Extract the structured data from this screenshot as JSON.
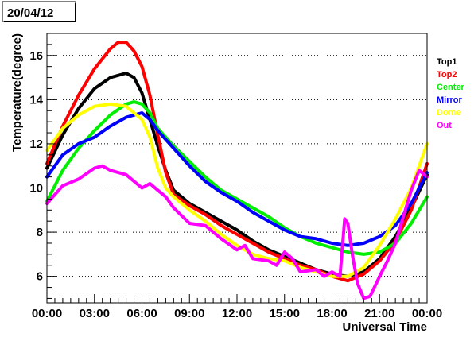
{
  "date_label": "20/04/12",
  "chart_data": {
    "type": "line",
    "title": "20/04/12",
    "xlabel": "Universal Time",
    "ylabel": "Temperature(degree)",
    "xlim": [
      0,
      24
    ],
    "ylim": [
      4.8,
      17.0
    ],
    "x_ticks": [
      {
        "value": 0,
        "label": "00:00"
      },
      {
        "value": 3,
        "label": "03:00"
      },
      {
        "value": 6,
        "label": "06:00"
      },
      {
        "value": 9,
        "label": "09:00"
      },
      {
        "value": 12,
        "label": "12:00"
      },
      {
        "value": 15,
        "label": "15:00"
      },
      {
        "value": 18,
        "label": "18:00"
      },
      {
        "value": 21,
        "label": "21:00"
      },
      {
        "value": 24,
        "label": "00:00"
      }
    ],
    "y_ticks": [
      {
        "value": 6,
        "label": "6"
      },
      {
        "value": 8,
        "label": "8"
      },
      {
        "value": 10,
        "label": "10"
      },
      {
        "value": 12,
        "label": "12"
      },
      {
        "value": 14,
        "label": "14"
      },
      {
        "value": 16,
        "label": "16"
      }
    ],
    "grid": "horizontal dotted",
    "legend_position": "right",
    "series": [
      {
        "name": "Top1",
        "color": "#000000",
        "points": [
          [
            0,
            10.9
          ],
          [
            1,
            12.4
          ],
          [
            2,
            13.6
          ],
          [
            3,
            14.5
          ],
          [
            4,
            15.0
          ],
          [
            5,
            15.2
          ],
          [
            5.5,
            15.0
          ],
          [
            6,
            14.3
          ],
          [
            6.5,
            13.1
          ],
          [
            7,
            11.9
          ],
          [
            7.5,
            10.8
          ],
          [
            8,
            9.9
          ],
          [
            9,
            9.3
          ],
          [
            10,
            8.9
          ],
          [
            11,
            8.5
          ],
          [
            12,
            8.1
          ],
          [
            13,
            7.6
          ],
          [
            14,
            7.2
          ],
          [
            15,
            6.9
          ],
          [
            16,
            6.6
          ],
          [
            17,
            6.3
          ],
          [
            18,
            6.1
          ],
          [
            19,
            6.0
          ],
          [
            20,
            6.2
          ],
          [
            21,
            6.8
          ],
          [
            22,
            7.8
          ],
          [
            23,
            9.1
          ],
          [
            24,
            10.6
          ]
        ]
      },
      {
        "name": "Top2",
        "color": "#ff0000",
        "points": [
          [
            0,
            11.1
          ],
          [
            1,
            12.8
          ],
          [
            2,
            14.2
          ],
          [
            3,
            15.4
          ],
          [
            4,
            16.3
          ],
          [
            4.5,
            16.6
          ],
          [
            5,
            16.6
          ],
          [
            5.5,
            16.2
          ],
          [
            6,
            15.5
          ],
          [
            6.5,
            14.2
          ],
          [
            7,
            12.4
          ],
          [
            7.5,
            10.7
          ],
          [
            8,
            9.7
          ],
          [
            9,
            9.2
          ],
          [
            10,
            8.8
          ],
          [
            11,
            8.3
          ],
          [
            12,
            7.9
          ],
          [
            13,
            7.5
          ],
          [
            14,
            7.1
          ],
          [
            15,
            6.8
          ],
          [
            16,
            6.5
          ],
          [
            17,
            6.3
          ],
          [
            18,
            6.0
          ],
          [
            19,
            5.8
          ],
          [
            20,
            6.1
          ],
          [
            21,
            6.7
          ],
          [
            22,
            7.6
          ],
          [
            23,
            9.0
          ],
          [
            24,
            11.1
          ]
        ]
      },
      {
        "name": "Center",
        "color": "#00ee00",
        "points": [
          [
            0,
            9.4
          ],
          [
            1,
            10.8
          ],
          [
            2,
            11.8
          ],
          [
            3,
            12.6
          ],
          [
            4,
            13.3
          ],
          [
            5,
            13.8
          ],
          [
            5.5,
            13.9
          ],
          [
            6,
            13.8
          ],
          [
            6.5,
            13.4
          ],
          [
            7,
            12.7
          ],
          [
            8,
            11.9
          ],
          [
            9,
            11.2
          ],
          [
            10,
            10.5
          ],
          [
            11,
            9.9
          ],
          [
            12,
            9.5
          ],
          [
            13,
            9.1
          ],
          [
            14,
            8.7
          ],
          [
            15,
            8.2
          ],
          [
            16,
            7.8
          ],
          [
            17,
            7.5
          ],
          [
            18,
            7.3
          ],
          [
            19,
            7.1
          ],
          [
            20,
            7.0
          ],
          [
            21,
            7.1
          ],
          [
            22,
            7.5
          ],
          [
            23,
            8.4
          ],
          [
            24,
            9.6
          ]
        ]
      },
      {
        "name": "Mirror",
        "color": "#0000ff",
        "points": [
          [
            0,
            10.5
          ],
          [
            1,
            11.5
          ],
          [
            2,
            12.0
          ],
          [
            3,
            12.3
          ],
          [
            4,
            12.8
          ],
          [
            5,
            13.2
          ],
          [
            6,
            13.4
          ],
          [
            6.5,
            13.1
          ],
          [
            7,
            12.6
          ],
          [
            8,
            11.8
          ],
          [
            9,
            11.0
          ],
          [
            10,
            10.3
          ],
          [
            11,
            9.8
          ],
          [
            12,
            9.4
          ],
          [
            13,
            8.9
          ],
          [
            14,
            8.5
          ],
          [
            15,
            8.1
          ],
          [
            16,
            7.8
          ],
          [
            17,
            7.7
          ],
          [
            18,
            7.5
          ],
          [
            19,
            7.4
          ],
          [
            20,
            7.5
          ],
          [
            21,
            7.8
          ],
          [
            22,
            8.3
          ],
          [
            23,
            9.3
          ],
          [
            24,
            10.7
          ]
        ]
      },
      {
        "name": "Dome",
        "color": "#ffff00",
        "points": [
          [
            0,
            11.7
          ],
          [
            1,
            12.7
          ],
          [
            2,
            13.3
          ],
          [
            3,
            13.7
          ],
          [
            4,
            13.8
          ],
          [
            5,
            13.7
          ],
          [
            6,
            13.1
          ],
          [
            6.5,
            12.3
          ],
          [
            7,
            10.9
          ],
          [
            7.5,
            10.0
          ],
          [
            8,
            9.6
          ],
          [
            9,
            9.0
          ],
          [
            10,
            8.5
          ],
          [
            11,
            7.9
          ],
          [
            12,
            7.4
          ],
          [
            13,
            7.0
          ],
          [
            14,
            6.8
          ],
          [
            15,
            6.7
          ],
          [
            16,
            6.4
          ],
          [
            17,
            6.2
          ],
          [
            18,
            6.0
          ],
          [
            19,
            6.0
          ],
          [
            20,
            6.4
          ],
          [
            21,
            7.4
          ],
          [
            22,
            8.6
          ],
          [
            23,
            10.0
          ],
          [
            24,
            12.0
          ]
        ]
      },
      {
        "name": "Out",
        "color": "#ff00ff",
        "points": [
          [
            0,
            9.3
          ],
          [
            1,
            10.1
          ],
          [
            2,
            10.4
          ],
          [
            3,
            10.9
          ],
          [
            3.5,
            11.0
          ],
          [
            4,
            10.8
          ],
          [
            5,
            10.6
          ],
          [
            6,
            10.0
          ],
          [
            6.5,
            10.2
          ],
          [
            7,
            9.9
          ],
          [
            7.5,
            9.6
          ],
          [
            8,
            9.1
          ],
          [
            9,
            8.4
          ],
          [
            10,
            8.3
          ],
          [
            11,
            7.7
          ],
          [
            12,
            7.2
          ],
          [
            12.5,
            7.4
          ],
          [
            13,
            6.8
          ],
          [
            14,
            6.7
          ],
          [
            14.5,
            6.5
          ],
          [
            15,
            7.1
          ],
          [
            15.5,
            6.8
          ],
          [
            16,
            6.2
          ],
          [
            17,
            6.3
          ],
          [
            17.5,
            6.0
          ],
          [
            18,
            6.2
          ],
          [
            18.5,
            6.0
          ],
          [
            18.8,
            8.6
          ],
          [
            19,
            8.4
          ],
          [
            19.3,
            6.9
          ],
          [
            19.6,
            5.7
          ],
          [
            20,
            5.0
          ],
          [
            20.4,
            5.1
          ],
          [
            21,
            6.0
          ],
          [
            21.5,
            6.7
          ],
          [
            22,
            7.5
          ],
          [
            23,
            9.9
          ],
          [
            23.5,
            10.8
          ],
          [
            24,
            10.5
          ]
        ]
      }
    ]
  }
}
